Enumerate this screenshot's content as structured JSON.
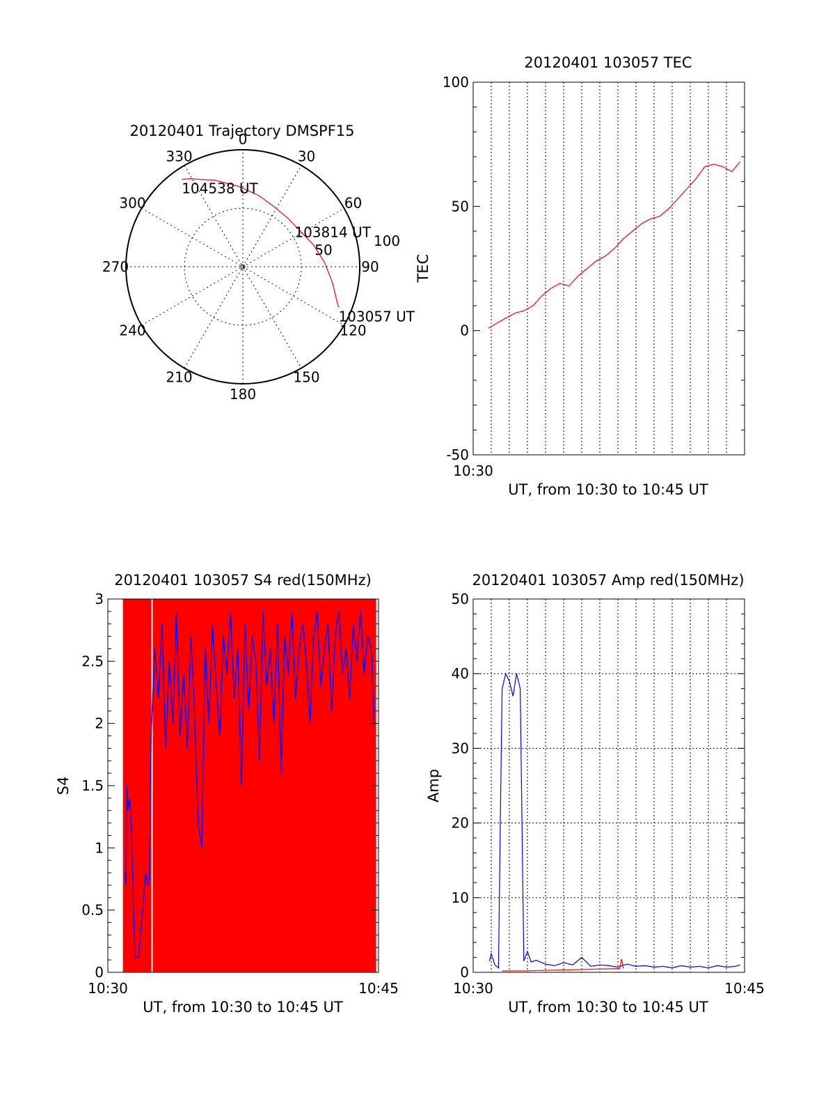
{
  "chart_data": [
    {
      "type": "polar",
      "title": "20120401 Trajectory DMSPF15",
      "angle_labels": [
        "0",
        "30",
        "60",
        "90",
        "120",
        "150",
        "180",
        "210",
        "240",
        "270",
        "300",
        "330"
      ],
      "radial_labels": [
        "50",
        "100"
      ],
      "grid": true,
      "series": [
        {
          "color": "#ff0000",
          "points": [
            {
              "az": 113,
              "el": 10
            },
            {
              "az": 100,
              "el": 20
            },
            {
              "az": 87,
              "el": 27
            },
            {
              "az": 73,
              "el": 33
            },
            {
              "az": 58,
              "el": 38
            },
            {
              "az": 43,
              "el": 39
            },
            {
              "az": 28,
              "el": 38
            },
            {
              "az": 13,
              "el": 34
            },
            {
              "az": -3,
              "el": 28
            },
            {
              "az": -18,
              "el": 20
            },
            {
              "az": -31,
              "el": 11
            },
            {
              "az": -35,
              "el": 8
            }
          ]
        }
      ],
      "annotations": [
        {
          "text": "103057 UT",
          "az": 113,
          "el": 10
        },
        {
          "text": "103814 UT",
          "az": 50,
          "el": 38
        },
        {
          "text": "104538 UT",
          "az": -35,
          "el": 8
        }
      ]
    },
    {
      "type": "line",
      "title": "20120401 103057 TEC",
      "xlabel": "UT, from 10:30 to 10:45 UT",
      "ylabel": "TEC",
      "xlim": [
        0,
        15
      ],
      "ylim": [
        -50,
        100
      ],
      "x_tick_labels": [
        "10:30"
      ],
      "y_ticks": [
        -50,
        0,
        50,
        100
      ],
      "grid": true,
      "series": [
        {
          "color": "#ff0000",
          "x": [
            0.85,
            1.3,
            1.8,
            2.3,
            2.8,
            3.3,
            3.8,
            4.3,
            4.8,
            5.3,
            5.8,
            6.3,
            6.8,
            7.3,
            7.8,
            8.3,
            8.8,
            9.3,
            9.8,
            10.3,
            10.8,
            11.3,
            11.8,
            12.3,
            12.8,
            13.3,
            13.8,
            14.3,
            14.75
          ],
          "y": [
            1,
            3,
            5,
            7,
            8,
            10,
            14,
            17,
            19,
            18,
            22,
            25,
            28,
            30,
            33,
            37,
            40,
            43,
            45,
            46,
            49,
            53,
            57,
            61,
            66,
            67,
            66,
            64,
            68
          ]
        }
      ]
    },
    {
      "type": "bar",
      "title": "20120401 103057 S4 red(150MHz)",
      "xlabel": "UT, from 10:30 to 10:45 UT",
      "ylabel": "S4",
      "xlim": [
        0,
        15
      ],
      "ylim": [
        0,
        3
      ],
      "x_tick_labels": [
        "10:30",
        "10:45"
      ],
      "y_ticks": [
        0,
        0.5,
        1,
        1.5,
        2,
        2.5,
        3
      ],
      "grid": false,
      "series": [
        {
          "color": "#ff0000",
          "x": [
            0.95,
            1.05,
            1.2,
            1.4,
            1.6,
            1.75,
            1.9,
            2.05,
            2.2,
            2.3,
            2.6,
            2.75,
            2.9,
            3.05,
            3.2,
            3.35,
            3.5,
            3.65,
            3.8,
            3.95,
            4.1,
            4.25,
            4.4,
            4.55,
            4.7,
            4.85,
            5.0,
            5.15,
            5.3,
            5.45,
            5.6,
            5.75,
            5.9,
            6.05,
            6.2,
            6.35,
            6.5,
            6.65,
            6.8,
            6.95,
            7.1,
            7.25,
            7.4,
            7.55,
            7.7,
            7.85,
            8.0,
            8.15,
            8.3,
            8.45,
            8.6,
            8.75,
            8.9,
            9.05,
            9.2,
            9.35,
            9.5,
            9.65,
            9.8,
            9.95,
            10.1,
            10.25,
            10.4,
            10.55,
            10.7,
            10.85,
            11.0,
            11.15,
            11.3,
            11.45,
            11.6,
            11.75,
            11.9,
            12.05,
            12.2,
            12.35,
            12.5,
            12.65,
            12.8,
            12.95,
            13.1,
            13.25,
            13.4,
            13.55,
            13.7,
            13.85,
            14.0,
            14.15,
            14.3,
            14.45,
            14.6,
            14.75
          ],
          "values": [
            3,
            3,
            3,
            3,
            3,
            3,
            3,
            3,
            3,
            3,
            3,
            3,
            3,
            3,
            3,
            3,
            3,
            3,
            3,
            3,
            3,
            3,
            3,
            3,
            3,
            3,
            3,
            3,
            3,
            3,
            3,
            3,
            3,
            3,
            3,
            3,
            3,
            3,
            3,
            3,
            3,
            3,
            3,
            3,
            3,
            3,
            3,
            3,
            3,
            3,
            3,
            3,
            3,
            3,
            3,
            3,
            3,
            3,
            3,
            3,
            3,
            3,
            3,
            3,
            3,
            3,
            3,
            3,
            3,
            3,
            3,
            3,
            3,
            3,
            3,
            3,
            3,
            3,
            3,
            3,
            3,
            3,
            3,
            3,
            3,
            3,
            3,
            3,
            3,
            3,
            3,
            3
          ]
        },
        {
          "type": "line",
          "color": "#0000ff",
          "x": [
            0.95,
            1.0,
            1.05,
            1.1,
            1.2,
            1.3,
            1.5,
            1.6,
            1.7,
            2.1,
            2.2,
            2.3,
            2.4,
            2.6,
            2.8,
            3.0,
            3.2,
            3.4,
            3.6,
            3.8,
            4.0,
            4.2,
            4.4,
            4.6,
            4.8,
            5.0,
            5.2,
            5.4,
            5.6,
            5.8,
            6.0,
            6.2,
            6.4,
            6.6,
            6.8,
            7.0,
            7.2,
            7.4,
            7.6,
            7.8,
            8.0,
            8.2,
            8.4,
            8.6,
            8.8,
            9.0,
            9.2,
            9.4,
            9.6,
            9.8,
            10.0,
            10.2,
            10.4,
            10.6,
            10.8,
            11.0,
            11.2,
            11.4,
            11.6,
            11.8,
            12.0,
            12.2,
            12.4,
            12.6,
            12.8,
            13.0,
            13.2,
            13.4,
            13.6,
            13.8,
            14.0,
            14.2,
            14.4,
            14.6,
            14.75
          ],
          "y": [
            0.8,
            0.7,
            1.5,
            1.3,
            1.4,
            1.2,
            0.12,
            0.12,
            0.13,
            0.8,
            0.7,
            0.75,
            1.9,
            2.6,
            2.2,
            2.8,
            1.8,
            2.5,
            2.0,
            2.9,
            1.9,
            2.4,
            1.8,
            2.7,
            2.1,
            1.2,
            1.0,
            2.6,
            2.0,
            2.8,
            2.3,
            1.9,
            2.7,
            2.4,
            2.9,
            2.2,
            2.6,
            1.5,
            2.8,
            2.1,
            2.7,
            2.5,
            1.7,
            2.9,
            2.3,
            2.6,
            2.0,
            2.8,
            1.6,
            2.7,
            2.4,
            2.9,
            2.2,
            2.6,
            2.8,
            2.5,
            2.0,
            2.7,
            2.9,
            2.3,
            2.6,
            2.8,
            2.1,
            2.7,
            2.9,
            2.4,
            2.6,
            2.2,
            2.8,
            2.5,
            2.9,
            2.4,
            2.7,
            2.6,
            2.0
          ]
        }
      ]
    },
    {
      "type": "line",
      "title": "20120401 103057 Amp red(150MHz)",
      "xlabel": "UT, from 10:30 to 10:45 UT",
      "ylabel": "Amp",
      "xlim": [
        0,
        15
      ],
      "ylim": [
        0,
        50
      ],
      "x_tick_labels": [
        "10:30",
        "10:45"
      ],
      "y_ticks": [
        0,
        10,
        20,
        30,
        40,
        50
      ],
      "grid": true,
      "series": [
        {
          "color": "#0000ff",
          "x": [
            0.9,
            1.0,
            1.2,
            1.4,
            1.5,
            1.6,
            1.8,
            2.0,
            2.2,
            2.4,
            2.6,
            2.8,
            3.0,
            3.2,
            3.5,
            4.0,
            4.5,
            5.0,
            5.5,
            6.0,
            6.5,
            7.0,
            7.5,
            8.0,
            8.5,
            9.0,
            9.5,
            10.0,
            10.5,
            11.0,
            11.5,
            12.0,
            12.5,
            13.0,
            13.5,
            14.0,
            14.5,
            14.75
          ],
          "y": [
            1.5,
            2.5,
            1.0,
            0.6,
            20,
            38,
            40,
            39,
            37,
            40,
            38,
            1.5,
            2.8,
            1.4,
            1.6,
            1.1,
            0.9,
            1.3,
            1.0,
            2.0,
            0.8,
            1.0,
            0.9,
            0.7,
            1.1,
            0.8,
            0.9,
            0.7,
            0.8,
            0.6,
            0.9,
            0.7,
            0.8,
            0.6,
            0.9,
            0.7,
            0.8,
            1.0
          ]
        },
        {
          "color": "#ff0000",
          "x": [
            1.6,
            1.8,
            2.0,
            2.2,
            2.4,
            2.6,
            2.8,
            8.1,
            8.2,
            8.3
          ],
          "y": [
            0.2,
            0.2,
            0.2,
            0.2,
            0.2,
            0.2,
            0.2,
            0.5,
            1.8,
            0.5
          ]
        }
      ]
    }
  ]
}
